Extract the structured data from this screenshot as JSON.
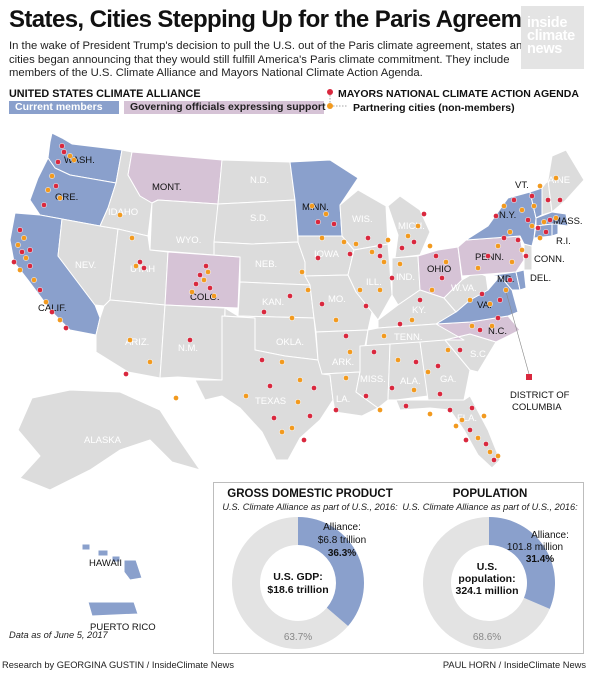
{
  "title": "States, Cities Stepping Up for the Paris Agreement",
  "intro": [
    "In the wake of President Trump's decision to pull the U.S. out of the Paris climate agreement, states and",
    "cities began announcing that they would still fulfill America's Paris climate commitment. They include",
    "members of the U.S. Climate Alliance and Mayors National Climate Action Agenda."
  ],
  "logo": [
    "inside",
    "climate",
    "news"
  ],
  "legend": {
    "alliance_heading": "UNITED STATES CLIMATE ALLIANCE",
    "current_members": "Current members",
    "supporting": "Governing officials expressing support",
    "mayors_heading": "MAYORS NATIONAL CLIMATE ACTION AGENDA",
    "partnering": "Partnering cities (non-members)"
  },
  "colors": {
    "member": "#8aa0cc",
    "support": "#d6c3d6",
    "other": "#dcdcdc",
    "mayor_dot": "#d9283e",
    "partner_dot": "#f29a1f",
    "donut_rest": "#e3e3e3"
  },
  "state_labels": {
    "wa": "WASH.",
    "or": "ORE.",
    "ca": "CALIF.",
    "nv": "NEV.",
    "id": "IDAHO",
    "mt": "MONT.",
    "wy": "WYO.",
    "ut": "UTAH",
    "co": "COLO.",
    "az": "ARIZ.",
    "nm": "N.M.",
    "nd": "N.D.",
    "sd": "S.D.",
    "ne": "NEB.",
    "ks": "KAN.",
    "ok": "OKLA.",
    "tx": "TEXAS",
    "mn": "MINN.",
    "ia": "IOWA",
    "mo": "MO.",
    "ar": "ARK.",
    "la": "LA.",
    "wi": "WIS.",
    "il": "ILL.",
    "mi": "MICH.",
    "in": "IND.",
    "oh": "OHIO",
    "ky": "KY.",
    "tn": "TENN.",
    "ms": "MISS.",
    "al": "ALA.",
    "ga": "GA.",
    "fl": "FLA.",
    "sc": "S.C.",
    "nc": "N.C.",
    "va": "VA.",
    "wv": "W.VA.",
    "pa": "PENN.",
    "ny": "N.Y.",
    "vt": "VT.",
    "me": "MAINE",
    "ma": "MASS.",
    "ri": "R.I.",
    "ct": "CONN.",
    "md": "MD.",
    "de": "DEL.",
    "dc_1": "DISTRICT OF",
    "dc_2": "COLUMBIA",
    "ak": "ALASKA",
    "hi": "HAWAII",
    "pr": "PUERTO RICO"
  },
  "gdp": {
    "heading": "GROSS DOMESTIC PRODUCT",
    "subheading": "U.S. Climate Alliance as part of U.S., 2016:",
    "alliance_label": "Alliance:",
    "alliance_value": "$6.8 trillion",
    "alliance_share_text": "36.3%",
    "alliance_share": 36.3,
    "total_label": "U.S. GDP:",
    "total_value": "$18.6 trillion",
    "rest_share_text": "63.7%"
  },
  "population": {
    "heading": "POPULATION",
    "subheading": "U.S. Climate Alliance as part of U.S., 2016:",
    "alliance_label": "Alliance:",
    "alliance_value": "101.8 million",
    "alliance_share_text": "31.4%",
    "alliance_share": 31.4,
    "total_label_1": "U.S.",
    "total_label_2": "population:",
    "total_value": "324.1 million",
    "rest_share_text": "68.6%"
  },
  "data_note": "Data as of June 5, 2017",
  "footer_left": "Research by GEORGINA GUSTIN / InsideClimate News",
  "footer_right": "PAUL HORN / InsideClimate News"
}
